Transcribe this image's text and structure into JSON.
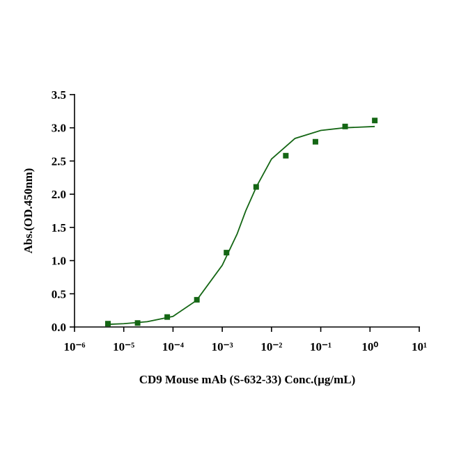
{
  "chart_data": {
    "type": "scatter",
    "xlabel": "CD9 Mouse mAb (S-632-33) Conc.(µg/mL)",
    "ylabel": "Abs.(OD.450nm)",
    "xscale": "log",
    "xlim": [
      1e-06,
      10
    ],
    "xticks": [
      {
        "value": 1e-06,
        "label": "10⁻⁶"
      },
      {
        "value": 1e-05,
        "label": "10⁻⁵"
      },
      {
        "value": 0.0001,
        "label": "10⁻⁴"
      },
      {
        "value": 0.001,
        "label": "10⁻³"
      },
      {
        "value": 0.01,
        "label": "10⁻²"
      },
      {
        "value": 0.1,
        "label": "10⁻¹"
      },
      {
        "value": 1,
        "label": "10⁰"
      },
      {
        "value": 10,
        "label": "10¹"
      }
    ],
    "ylim": [
      0,
      3.5
    ],
    "yticks": [
      {
        "value": 0,
        "label": "0.0"
      },
      0.5,
      {
        "value": 1,
        "label": "1.0"
      },
      1.5,
      {
        "value": 2,
        "label": "2.0"
      },
      2.5,
      {
        "value": 3,
        "label": "3.0"
      },
      3.5
    ],
    "series": [
      {
        "style": "marker",
        "color": "#146614",
        "x": [
          4.77e-06,
          1.91e-05,
          7.63e-05,
          0.000305,
          0.00122,
          0.00488,
          0.0195,
          0.078,
          0.3125,
          1.25
        ],
        "values": [
          0.05,
          0.06,
          0.15,
          0.41,
          1.12,
          2.11,
          2.58,
          2.79,
          3.02,
          3.11
        ]
      },
      {
        "style": "line",
        "color": "#146614",
        "x": [
          4.77e-06,
          1e-05,
          3e-05,
          0.0001,
          0.0003,
          0.001,
          0.002,
          0.003,
          0.005,
          0.01,
          0.03,
          0.1,
          0.3,
          1.25
        ],
        "values": [
          0.04,
          0.05,
          0.08,
          0.16,
          0.4,
          0.93,
          1.4,
          1.75,
          2.12,
          2.53,
          2.84,
          2.96,
          3.0,
          3.02
        ]
      }
    ]
  }
}
